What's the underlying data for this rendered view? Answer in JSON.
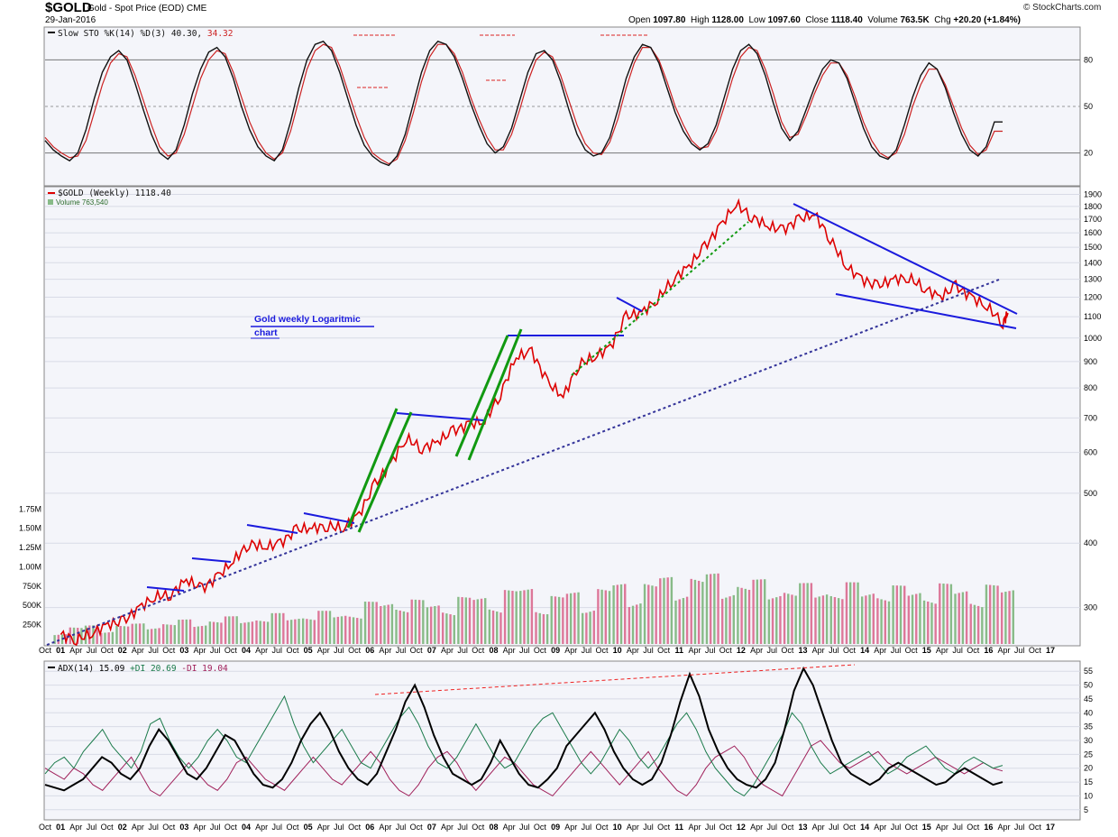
{
  "header": {
    "symbol": "$GOLD",
    "description": "Gold - Spot Price (EOD)",
    "exchange": "CME",
    "date": "29-Jan-2016",
    "copyright": "© StockCharts.com",
    "open_label": "Open",
    "open": "1097.80",
    "high_label": "High",
    "high": "1128.00",
    "low_label": "Low",
    "low": "1097.60",
    "close_label": "Close",
    "close": "1118.40",
    "volume_label": "Volume",
    "volume": "763.5K",
    "chg_label": "Chg",
    "chg": "+20.20 (+1.84%)"
  },
  "colors": {
    "price": "#dd0000",
    "trendline_blue": "#1a1add",
    "channel_green": "#119911",
    "dotted_support": "#333399",
    "volume_up": "#88bb88",
    "volume_down": "#dd7799",
    "stoch_k": "#111111",
    "stoch_d": "#cc2222",
    "adx": "#000000",
    "plus_di": "#1a7a4a",
    "minus_di": "#a0205a",
    "panel_bg": "#f4f5fa",
    "grid": "#d8dbe6"
  },
  "chart_data": [
    {
      "type": "line",
      "panel": "stochastics",
      "title": "Slow STO %K(14) %D(3) 40.30, 34.32",
      "legend": {
        "symbol": "Slow STO",
        "params": "%K(14) %D(3)",
        "k_value": "40.30",
        "d_value": "34.32"
      },
      "y_ticks": [
        "80",
        "50",
        "20"
      ],
      "ylim": [
        0,
        100
      ],
      "series": [
        {
          "name": "%K(14)",
          "values": [
            28,
            22,
            18,
            15,
            20,
            35,
            55,
            72,
            82,
            86,
            80,
            65,
            48,
            32,
            20,
            16,
            22,
            38,
            58,
            74,
            85,
            88,
            82,
            68,
            50,
            35,
            24,
            18,
            15,
            22,
            40,
            62,
            80,
            90,
            92,
            86,
            72,
            55,
            38,
            25,
            18,
            14,
            12,
            18,
            32,
            52,
            72,
            86,
            92,
            90,
            82,
            68,
            52,
            38,
            26,
            20,
            24,
            36,
            54,
            72,
            84,
            86,
            80,
            66,
            48,
            32,
            22,
            18,
            20,
            30,
            48,
            68,
            82,
            90,
            88,
            78,
            62,
            46,
            34,
            26,
            22,
            26,
            38,
            56,
            74,
            86,
            90,
            84,
            70,
            52,
            36,
            28,
            34,
            48,
            62,
            74,
            80,
            78,
            68,
            52,
            36,
            24,
            18,
            16,
            22,
            38,
            56,
            70,
            78,
            74,
            62,
            46,
            32,
            22,
            18,
            24,
            40,
            40
          ]
        },
        {
          "name": "%D(3)",
          "values": [
            30,
            24,
            20,
            17,
            18,
            28,
            46,
            64,
            78,
            84,
            82,
            70,
            54,
            38,
            24,
            18,
            20,
            32,
            50,
            68,
            80,
            86,
            84,
            72,
            56,
            40,
            28,
            20,
            16,
            20,
            34,
            54,
            74,
            86,
            90,
            88,
            76,
            60,
            44,
            30,
            20,
            16,
            13,
            16,
            28,
            46,
            66,
            82,
            90,
            90,
            84,
            72,
            56,
            42,
            30,
            22,
            22,
            32,
            48,
            66,
            80,
            85,
            82,
            70,
            54,
            38,
            26,
            20,
            19,
            27,
            42,
            62,
            78,
            88,
            88,
            80,
            66,
            50,
            38,
            28,
            23,
            24,
            34,
            50,
            68,
            82,
            88,
            86,
            74,
            58,
            40,
            30,
            32,
            44,
            58,
            70,
            78,
            78,
            70,
            56,
            40,
            28,
            20,
            17,
            20,
            32,
            50,
            64,
            74,
            74,
            64,
            50,
            36,
            25,
            19,
            22,
            34,
            34
          ]
        }
      ]
    },
    {
      "type": "line",
      "panel": "price",
      "title": "$GOLD (Weekly) 1118.40",
      "legend": {
        "series": "$GOLD (Weekly)",
        "value": "1118.40",
        "volume_label": "Volume",
        "volume_value": "763,540"
      },
      "annotation": "Gold weekly Logaritmic chart",
      "x_tick_labels": [
        "Oct",
        "01",
        "Apr",
        "Jul",
        "Oct",
        "02",
        "Apr",
        "Jul",
        "Oct",
        "03",
        "Apr",
        "Jul",
        "Oct",
        "04",
        "Apr",
        "Jul",
        "Oct",
        "05",
        "Apr",
        "Jul",
        "Oct",
        "06",
        "Apr",
        "Jul",
        "Oct",
        "07",
        "Apr",
        "Jul",
        "Oct",
        "08",
        "Apr",
        "Jul",
        "Oct",
        "09",
        "Apr",
        "Jul",
        "Oct",
        "10",
        "Apr",
        "Jul",
        "Oct",
        "11",
        "Apr",
        "Jul",
        "Oct",
        "12",
        "Apr",
        "Jul",
        "Oct",
        "13",
        "Apr",
        "Jul",
        "Oct",
        "14",
        "Apr",
        "Jul",
        "Oct",
        "15",
        "Apr",
        "Jul",
        "Oct",
        "16",
        "Apr",
        "Jul",
        "Oct",
        "17"
      ],
      "y_scale": "log",
      "y_ticks": [
        300,
        400,
        500,
        600,
        700,
        800,
        900,
        1000,
        1100,
        1200,
        1300,
        1400,
        1500,
        1600,
        1700,
        1800,
        1900
      ],
      "ylim": [
        255,
        1950
      ],
      "x": [
        2001.0,
        2001.25,
        2001.5,
        2001.75,
        2002.0,
        2002.25,
        2002.5,
        2002.75,
        2003.0,
        2003.25,
        2003.5,
        2003.75,
        2004.0,
        2004.25,
        2004.5,
        2004.75,
        2005.0,
        2005.25,
        2005.5,
        2005.75,
        2006.0,
        2006.25,
        2006.5,
        2006.75,
        2007.0,
        2007.25,
        2007.5,
        2007.75,
        2008.0,
        2008.25,
        2008.5,
        2008.75,
        2009.0,
        2009.25,
        2009.5,
        2009.75,
        2010.0,
        2010.25,
        2010.5,
        2010.75,
        2011.0,
        2011.25,
        2011.5,
        2011.75,
        2012.0,
        2012.25,
        2012.5,
        2012.75,
        2013.0,
        2013.25,
        2013.5,
        2013.75,
        2014.0,
        2014.25,
        2014.5,
        2014.75,
        2015.0,
        2015.25,
        2015.5,
        2015.75,
        2016.0,
        2016.08
      ],
      "series": [
        {
          "name": "$GOLD (Weekly)",
          "values": [
            266,
            260,
            268,
            278,
            282,
            300,
            315,
            318,
            340,
            326,
            345,
            370,
            400,
            393,
            400,
            425,
            428,
            432,
            428,
            455,
            520,
            570,
            640,
            610,
            630,
            660,
            680,
            690,
            780,
            920,
            940,
            820,
            770,
            890,
            920,
            960,
            1100,
            1120,
            1190,
            1300,
            1380,
            1500,
            1650,
            1820,
            1720,
            1650,
            1620,
            1700,
            1740,
            1560,
            1380,
            1300,
            1260,
            1300,
            1310,
            1250,
            1200,
            1260,
            1200,
            1150,
            1070,
            1118
          ]
        }
      ],
      "volume_y_ticks": [
        "250K",
        "500K",
        "750K",
        "1.00M",
        "1.25M",
        "1.50M",
        "1.75M"
      ],
      "volume_ylim": [
        0,
        1800000
      ],
      "volume": [
        210000,
        230000,
        250000,
        240000,
        260000,
        270000,
        300000,
        290000,
        320000,
        330000,
        340000,
        360000,
        380000,
        370000,
        400000,
        410000,
        420000,
        430000,
        440000,
        470000,
        550000,
        600000,
        620000,
        580000,
        560000,
        600000,
        620000,
        650000,
        700000,
        720000,
        760000,
        690000,
        650000,
        700000,
        720000,
        760000,
        800000,
        820000,
        850000,
        880000,
        900000,
        950000,
        920000,
        880000,
        860000,
        840000,
        820000,
        800000,
        790000,
        810000,
        780000,
        800000,
        790000,
        780000,
        760000,
        770000,
        780000,
        790000,
        770000,
        760000,
        780000,
        763540
      ]
    },
    {
      "type": "line",
      "panel": "adx",
      "title": "ADX(14) 15.09 +DI 20.69 -DI 19.04",
      "legend": {
        "adx_label": "ADX(14)",
        "adx_value": "15.09",
        "plus_di": "+DI 20.69",
        "minus_di": "-DI 19.04"
      },
      "y_ticks": [
        5,
        10,
        15,
        20,
        25,
        30,
        35,
        40,
        45,
        50,
        55
      ],
      "ylim": [
        2,
        58
      ],
      "series": [
        {
          "name": "ADX(14)",
          "values": [
            14,
            13,
            12,
            14,
            16,
            20,
            24,
            22,
            18,
            16,
            20,
            28,
            34,
            30,
            24,
            18,
            16,
            20,
            26,
            32,
            30,
            24,
            18,
            14,
            13,
            16,
            22,
            30,
            36,
            40,
            34,
            26,
            20,
            16,
            14,
            18,
            26,
            34,
            44,
            50,
            42,
            32,
            24,
            18,
            16,
            14,
            16,
            22,
            30,
            24,
            18,
            14,
            13,
            16,
            20,
            28,
            32,
            36,
            40,
            34,
            26,
            20,
            16,
            14,
            16,
            22,
            32,
            44,
            54,
            46,
            34,
            26,
            20,
            16,
            14,
            13,
            16,
            22,
            34,
            48,
            56,
            50,
            40,
            30,
            22,
            18,
            16,
            14,
            16,
            20,
            22,
            20,
            18,
            16,
            14,
            15,
            18,
            20,
            18,
            16,
            14,
            15
          ]
        },
        {
          "name": "+DI",
          "values": [
            18,
            22,
            24,
            20,
            26,
            30,
            34,
            28,
            24,
            20,
            26,
            36,
            38,
            30,
            24,
            20,
            24,
            30,
            34,
            30,
            24,
            22,
            28,
            34,
            40,
            46,
            36,
            28,
            22,
            26,
            30,
            34,
            28,
            22,
            20,
            26,
            32,
            38,
            42,
            36,
            28,
            22,
            20,
            24,
            30,
            36,
            30,
            24,
            20,
            22,
            28,
            34,
            38,
            40,
            34,
            28,
            22,
            18,
            22,
            28,
            34,
            30,
            24,
            20,
            24,
            30,
            36,
            40,
            34,
            26,
            20,
            16,
            12,
            10,
            14,
            20,
            26,
            32,
            40,
            36,
            28,
            22,
            18,
            20,
            22,
            24,
            26,
            22,
            18,
            20,
            24,
            26,
            28,
            24,
            20,
            18,
            22,
            24,
            22,
            20,
            21
          ]
        },
        {
          "name": "-DI",
          "values": [
            20,
            18,
            16,
            20,
            18,
            14,
            12,
            16,
            20,
            24,
            18,
            12,
            10,
            14,
            18,
            22,
            18,
            14,
            12,
            16,
            22,
            24,
            20,
            16,
            14,
            12,
            16,
            20,
            24,
            20,
            16,
            14,
            18,
            22,
            26,
            22,
            16,
            12,
            10,
            14,
            20,
            24,
            26,
            22,
            16,
            12,
            16,
            20,
            24,
            22,
            18,
            14,
            12,
            10,
            14,
            18,
            22,
            26,
            22,
            18,
            14,
            18,
            22,
            26,
            20,
            16,
            12,
            10,
            14,
            20,
            24,
            26,
            28,
            24,
            18,
            14,
            12,
            10,
            16,
            22,
            28,
            30,
            26,
            22,
            20,
            22,
            24,
            26,
            22,
            20,
            18,
            20,
            22,
            24,
            22,
            20,
            18,
            20,
            22,
            20,
            19
          ]
        }
      ]
    }
  ]
}
